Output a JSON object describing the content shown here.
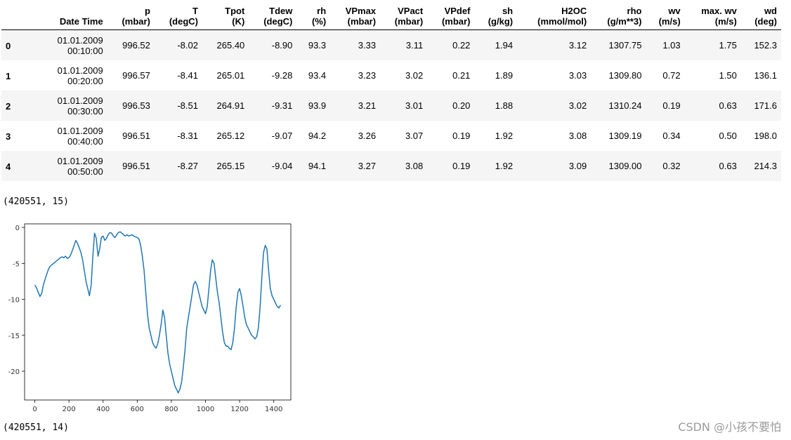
{
  "table": {
    "columns": [
      {
        "name": "Date Time",
        "unit": ""
      },
      {
        "name": "p",
        "unit": "(mbar)"
      },
      {
        "name": "T",
        "unit": "(degC)"
      },
      {
        "name": "Tpot",
        "unit": "(K)"
      },
      {
        "name": "Tdew",
        "unit": "(degC)"
      },
      {
        "name": "rh",
        "unit": "(%)"
      },
      {
        "name": "VPmax",
        "unit": "(mbar)"
      },
      {
        "name": "VPact",
        "unit": "(mbar)"
      },
      {
        "name": "VPdef",
        "unit": "(mbar)"
      },
      {
        "name": "sh",
        "unit": "(g/kg)"
      },
      {
        "name": "H2OC",
        "unit": "(mmol/mol)"
      },
      {
        "name": "rho",
        "unit": "(g/m**3)"
      },
      {
        "name": "wv",
        "unit": "(m/s)"
      },
      {
        "name": "max. wv",
        "unit": "(m/s)"
      },
      {
        "name": "wd",
        "unit": "(deg)"
      }
    ],
    "rows": [
      {
        "index": "0",
        "date": "01.01.2009",
        "time": "00:10:00",
        "values": [
          "996.52",
          "-8.02",
          "265.40",
          "-8.90",
          "93.3",
          "3.33",
          "3.11",
          "0.22",
          "1.94",
          "3.12",
          "1307.75",
          "1.03",
          "1.75",
          "152.3"
        ]
      },
      {
        "index": "1",
        "date": "01.01.2009",
        "time": "00:20:00",
        "values": [
          "996.57",
          "-8.41",
          "265.01",
          "-9.28",
          "93.4",
          "3.23",
          "3.02",
          "0.21",
          "1.89",
          "3.03",
          "1309.80",
          "0.72",
          "1.50",
          "136.1"
        ]
      },
      {
        "index": "2",
        "date": "01.01.2009",
        "time": "00:30:00",
        "values": [
          "996.53",
          "-8.51",
          "264.91",
          "-9.31",
          "93.9",
          "3.21",
          "3.01",
          "0.20",
          "1.88",
          "3.02",
          "1310.24",
          "0.19",
          "0.63",
          "171.6"
        ]
      },
      {
        "index": "3",
        "date": "01.01.2009",
        "time": "00:40:00",
        "values": [
          "996.51",
          "-8.31",
          "265.12",
          "-9.07",
          "94.2",
          "3.26",
          "3.07",
          "0.19",
          "1.92",
          "3.08",
          "1309.19",
          "0.34",
          "0.50",
          "198.0"
        ]
      },
      {
        "index": "4",
        "date": "01.01.2009",
        "time": "00:50:00",
        "values": [
          "996.51",
          "-8.27",
          "265.15",
          "-9.04",
          "94.1",
          "3.27",
          "3.08",
          "0.19",
          "1.92",
          "3.09",
          "1309.00",
          "0.32",
          "0.63",
          "214.3"
        ]
      }
    ]
  },
  "output_shape_1": "(420551, 15)",
  "output_shape_2": "(420551, 14)",
  "watermark": "CSDN @小孩不要怕",
  "chart_data": {
    "type": "line",
    "title": "",
    "xlabel": "",
    "ylabel": "",
    "xlim": [
      -60,
      1500
    ],
    "ylim": [
      -24,
      0.5
    ],
    "xticks": [
      0,
      200,
      400,
      600,
      800,
      1000,
      1200,
      1400
    ],
    "yticks": [
      0,
      -5,
      -10,
      -15,
      -20
    ],
    "color": "#1f77b4",
    "series": [
      {
        "name": "T (degC)",
        "x": [
          0,
          10,
          20,
          30,
          40,
          50,
          60,
          70,
          80,
          90,
          100,
          110,
          120,
          130,
          140,
          150,
          160,
          170,
          180,
          190,
          200,
          210,
          220,
          230,
          240,
          250,
          260,
          270,
          280,
          290,
          300,
          310,
          320,
          330,
          340,
          350,
          360,
          370,
          380,
          390,
          400,
          410,
          420,
          430,
          440,
          450,
          460,
          470,
          480,
          490,
          500,
          510,
          520,
          530,
          540,
          550,
          560,
          570,
          580,
          590,
          600,
          610,
          620,
          630,
          640,
          650,
          660,
          670,
          680,
          690,
          700,
          710,
          720,
          730,
          740,
          750,
          760,
          770,
          780,
          790,
          800,
          810,
          820,
          830,
          840,
          850,
          860,
          870,
          880,
          890,
          900,
          910,
          920,
          930,
          940,
          950,
          960,
          970,
          980,
          990,
          1000,
          1010,
          1020,
          1030,
          1040,
          1050,
          1060,
          1070,
          1080,
          1090,
          1100,
          1110,
          1120,
          1130,
          1140,
          1150,
          1160,
          1170,
          1180,
          1190,
          1200,
          1210,
          1220,
          1230,
          1240,
          1250,
          1260,
          1270,
          1280,
          1290,
          1300,
          1310,
          1320,
          1330,
          1340,
          1350,
          1360,
          1370,
          1380,
          1390,
          1400,
          1410,
          1420,
          1430,
          1440
        ],
        "values": [
          -8.0,
          -8.4,
          -9.0,
          -9.6,
          -9.2,
          -8.0,
          -7.2,
          -6.5,
          -5.8,
          -5.4,
          -5.2,
          -5.0,
          -4.8,
          -4.6,
          -4.4,
          -4.2,
          -4.1,
          -4.2,
          -4.0,
          -4.3,
          -4.2,
          -3.8,
          -3.2,
          -2.5,
          -1.8,
          -2.2,
          -2.8,
          -3.5,
          -4.5,
          -6.0,
          -7.5,
          -8.5,
          -9.5,
          -8.0,
          -4.0,
          -0.8,
          -1.5,
          -4.0,
          -3.0,
          -1.4,
          -1.2,
          -1.8,
          -1.5,
          -1.0,
          -0.7,
          -0.8,
          -1.2,
          -1.4,
          -1.0,
          -0.7,
          -0.6,
          -0.8,
          -1.0,
          -1.2,
          -1.0,
          -1.2,
          -1.1,
          -1.0,
          -1.2,
          -1.3,
          -1.4,
          -1.6,
          -2.5,
          -4.0,
          -6.0,
          -9.0,
          -12.0,
          -14.0,
          -15.0,
          -16.0,
          -16.5,
          -16.8,
          -16.2,
          -15.0,
          -13.5,
          -11.5,
          -12.5,
          -15.0,
          -17.5,
          -19.0,
          -20.0,
          -21.0,
          -22.0,
          -22.5,
          -23.0,
          -22.5,
          -21.5,
          -19.5,
          -17.0,
          -14.0,
          -12.5,
          -11.0,
          -9.5,
          -8.0,
          -7.5,
          -8.0,
          -9.0,
          -10.0,
          -11.0,
          -11.5,
          -12.0,
          -11.0,
          -8.5,
          -6.0,
          -4.5,
          -5.0,
          -7.0,
          -9.0,
          -10.5,
          -12.5,
          -14.5,
          -16.0,
          -16.5,
          -16.5,
          -16.8,
          -17.0,
          -16.0,
          -14.0,
          -11.0,
          -9.0,
          -8.5,
          -9.5,
          -11.0,
          -12.5,
          -13.5,
          -14.0,
          -14.5,
          -15.0,
          -15.2,
          -15.5,
          -15.2,
          -14.0,
          -11.0,
          -7.0,
          -3.5,
          -2.5,
          -3.0,
          -6.0,
          -8.5,
          -9.5,
          -10.0,
          -10.5,
          -11.0,
          -11.2,
          -10.8
        ]
      }
    ]
  }
}
